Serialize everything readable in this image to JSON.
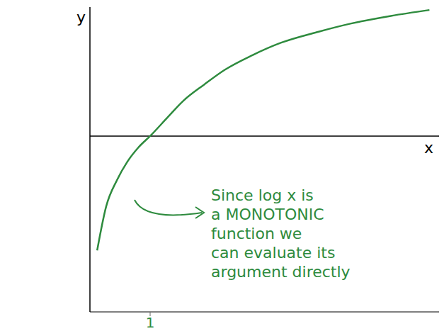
{
  "chart_data": {
    "type": "line",
    "x": [
      0.12,
      0.27,
      0.45,
      0.62,
      0.8,
      1,
      1.3,
      1.55,
      1.9,
      2.24,
      2.7,
      3.17,
      3.8,
      4.34,
      5,
      5.64
    ],
    "values": [
      -1.95,
      -1.2,
      -0.75,
      -0.44,
      -0.2,
      0,
      0.33,
      0.6,
      0.88,
      1.13,
      1.38,
      1.59,
      1.78,
      1.92,
      2.05,
      2.15
    ],
    "color": "#2e8b3e",
    "xlim": [
      0,
      5.8
    ],
    "xticks": [
      1
    ],
    "ylim": [
      -3,
      2.2
    ],
    "yticks": [],
    "xlabel": "x",
    "ylabel": "y",
    "tick_labels": "x",
    "marker": "none",
    "annotation": [
      "Since log x is",
      "a MONOTONIC",
      "function we",
      "can evaluate its",
      "argument directly"
    ]
  }
}
